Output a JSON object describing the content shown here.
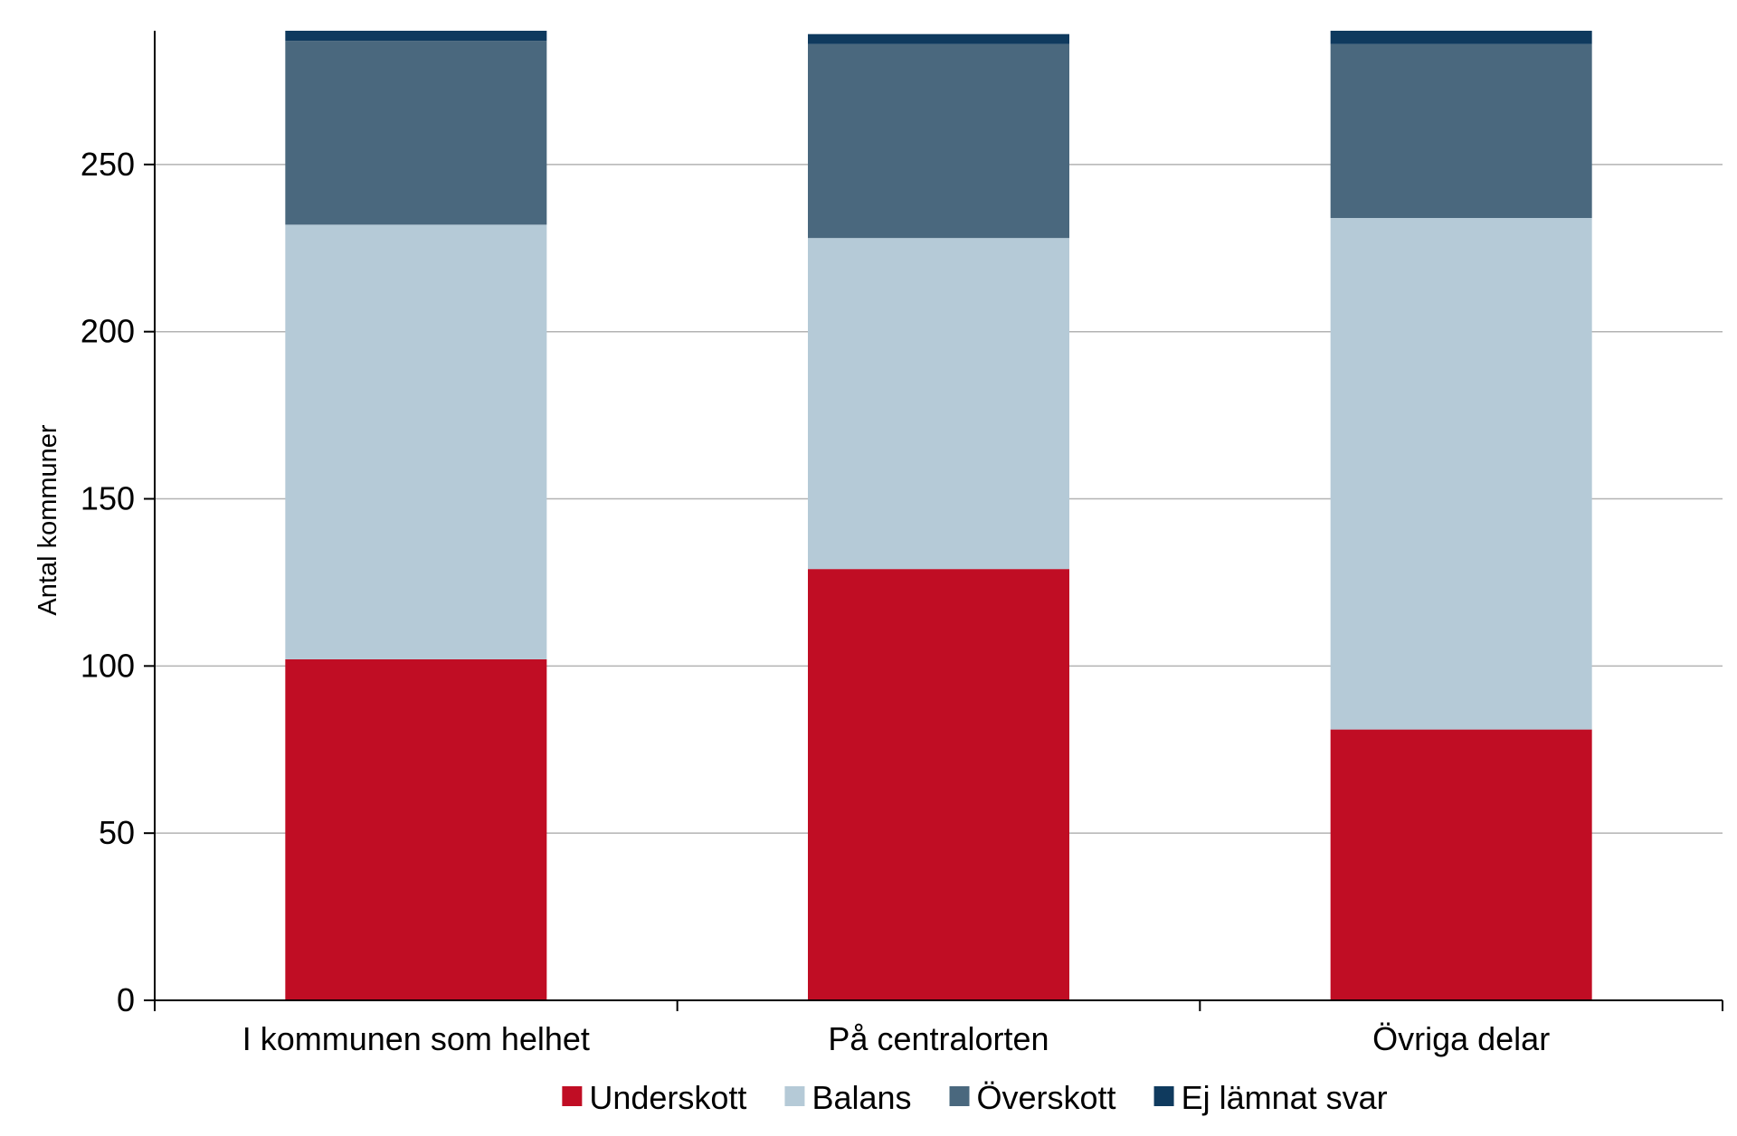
{
  "chart_data": {
    "type": "bar",
    "stacked": true,
    "title": "",
    "xlabel": "",
    "ylabel": "Antal kommuner",
    "ylim": [
      0,
      290
    ],
    "yticks": [
      0,
      50,
      100,
      150,
      200,
      250
    ],
    "grid": true,
    "legend_position": "bottom",
    "categories": [
      "I kommunen som helhet",
      "På centralorten",
      "Övriga delar"
    ],
    "series": [
      {
        "name": "Underskott",
        "color": "#c00d24",
        "values": [
          102,
          129,
          81
        ]
      },
      {
        "name": "Balans",
        "color": "#b5cad7",
        "values": [
          130,
          99,
          153
        ]
      },
      {
        "name": "Överskott",
        "color": "#4a687e",
        "values": [
          55,
          58,
          52
        ]
      },
      {
        "name": "Ej lämnat svar",
        "color": "#0f3a5e",
        "values": [
          3,
          3,
          4
        ]
      }
    ]
  }
}
